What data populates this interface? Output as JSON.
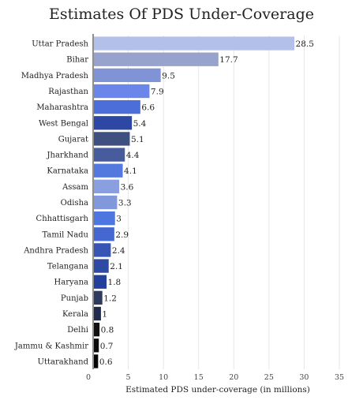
{
  "chart_data": {
    "type": "bar",
    "orientation": "horizontal",
    "title": "Estimates Of PDS Under-Coverage",
    "xlabel": "Estimated PDS under-coverage (in millions)",
    "ylabel": "",
    "xlim": [
      0,
      35
    ],
    "xticks": [
      0,
      5,
      10,
      15,
      20,
      25,
      30,
      35
    ],
    "grid": true,
    "categories": [
      "Uttar Pradesh",
      "Bihar",
      "Madhya Pradesh",
      "Rajasthan",
      "Maharashtra",
      "West Bengal",
      "Gujarat",
      "Jharkhand",
      "Karnataka",
      "Assam",
      "Odisha",
      "Chhattisgarh",
      "Tamil Nadu",
      "Andhra Pradesh",
      "Telangana",
      "Haryana",
      "Punjab",
      "Kerala",
      "Delhi",
      "Jammu & Kashmir",
      "Uttarakhand"
    ],
    "values": [
      28.5,
      17.7,
      9.5,
      7.9,
      6.6,
      5.4,
      5.1,
      4.4,
      4.1,
      3.6,
      3.3,
      3,
      2.9,
      2.4,
      2.1,
      1.8,
      1.2,
      1,
      0.8,
      0.7,
      0.6
    ],
    "value_labels": [
      "28.5",
      "17.7",
      "9.5",
      "7.9",
      "6.6",
      "5.4",
      "5.1",
      "4.4",
      "4.1",
      "3.6",
      "3.3",
      "3",
      "2.9",
      "2.4",
      "2.1",
      "1.8",
      "1.2",
      "1",
      "0.8",
      "0.7",
      "0.6"
    ],
    "colors": [
      "#b3c0ea",
      "#97a3cd",
      "#7f93d6",
      "#6a86ea",
      "#4b6ed8",
      "#2c48a4",
      "#3f4f7f",
      "#465c9c",
      "#5379de",
      "#8a9fe0",
      "#8198dc",
      "#4d76e0",
      "#4567d2",
      "#3655b5",
      "#2e4aa3",
      "#25409a",
      "#2f3a5f",
      "#1f2a4d",
      "#111111",
      "#0b0b0b",
      "#050505"
    ]
  }
}
